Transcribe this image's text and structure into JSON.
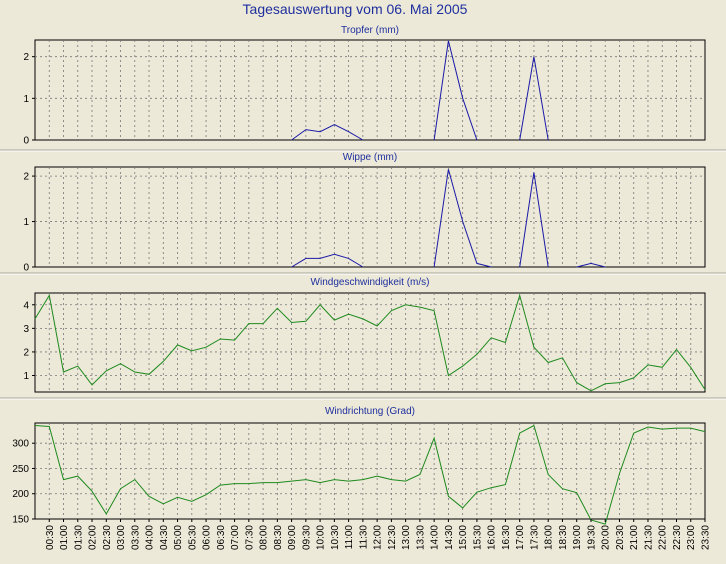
{
  "page": {
    "title": "Tagesauswertung vom 06. Mai 2005",
    "background": "#ece9d8",
    "title_color": "#1f2f9e"
  },
  "chart_data": [
    {
      "type": "line",
      "title": "Tropfer (mm)",
      "color": "#1a1aa8",
      "ylim": [
        0,
        2.4
      ],
      "yticks": [
        0,
        1,
        2
      ],
      "grid": true,
      "x": [
        "00:00",
        "00:30",
        "01:00",
        "01:30",
        "02:00",
        "02:30",
        "03:00",
        "03:30",
        "04:00",
        "04:30",
        "05:00",
        "05:30",
        "06:00",
        "06:30",
        "07:00",
        "07:30",
        "08:00",
        "08:30",
        "09:00",
        "09:30",
        "10:00",
        "10:30",
        "11:00",
        "11:30",
        "12:00",
        "12:30",
        "13:00",
        "13:30",
        "14:00",
        "14:30",
        "15:00",
        "15:30",
        "16:00",
        "16:30",
        "17:00",
        "17:30",
        "18:00",
        "18:30",
        "19:00",
        "19:30",
        "20:00",
        "20:30",
        "21:00",
        "21:30",
        "22:00",
        "22:30",
        "23:00",
        "23:30"
      ],
      "values": [
        null,
        null,
        null,
        null,
        null,
        null,
        null,
        null,
        null,
        null,
        null,
        null,
        null,
        null,
        null,
        null,
        null,
        null,
        0,
        0.25,
        0.2,
        0.37,
        0.2,
        0,
        null,
        null,
        null,
        null,
        0,
        2.38,
        1.0,
        0,
        null,
        null,
        0,
        2.0,
        0,
        null,
        null,
        null,
        null,
        null,
        null,
        null,
        null,
        null,
        null,
        null
      ]
    },
    {
      "type": "line",
      "title": "Wippe (mm)",
      "color": "#1a1aa8",
      "ylim": [
        0,
        2.2
      ],
      "yticks": [
        0,
        1,
        2
      ],
      "grid": true,
      "x": [
        "00:00",
        "00:30",
        "01:00",
        "01:30",
        "02:00",
        "02:30",
        "03:00",
        "03:30",
        "04:00",
        "04:30",
        "05:00",
        "05:30",
        "06:00",
        "06:30",
        "07:00",
        "07:30",
        "08:00",
        "08:30",
        "09:00",
        "09:30",
        "10:00",
        "10:30",
        "11:00",
        "11:30",
        "12:00",
        "12:30",
        "13:00",
        "13:30",
        "14:00",
        "14:30",
        "15:00",
        "15:30",
        "16:00",
        "16:30",
        "17:00",
        "17:30",
        "18:00",
        "18:30",
        "19:00",
        "19:30",
        "20:00",
        "20:30",
        "21:00",
        "21:30",
        "22:00",
        "22:30",
        "23:00",
        "23:30"
      ],
      "values": [
        null,
        null,
        null,
        null,
        null,
        null,
        null,
        null,
        null,
        null,
        null,
        null,
        null,
        null,
        null,
        null,
        null,
        null,
        0,
        0.19,
        0.19,
        0.28,
        0.19,
        0,
        null,
        null,
        null,
        null,
        0,
        2.15,
        1.0,
        0.08,
        0,
        null,
        0,
        2.08,
        0,
        null,
        0,
        0.08,
        0,
        null,
        null,
        null,
        null,
        null,
        null,
        null
      ]
    },
    {
      "type": "line",
      "title": "Windgeschwindigkeit (m/s)",
      "color": "#1e8a1e",
      "ylim": [
        0.3,
        4.5
      ],
      "yticks": [
        1,
        2,
        3,
        4
      ],
      "grid": true,
      "x": [
        "00:00",
        "00:30",
        "01:00",
        "01:30",
        "02:00",
        "02:30",
        "03:00",
        "03:30",
        "04:00",
        "04:30",
        "05:00",
        "05:30",
        "06:00",
        "06:30",
        "07:00",
        "07:30",
        "08:00",
        "08:30",
        "09:00",
        "09:30",
        "10:00",
        "10:30",
        "11:00",
        "11:30",
        "12:00",
        "12:30",
        "13:00",
        "13:30",
        "14:00",
        "14:30",
        "15:00",
        "15:30",
        "16:00",
        "16:30",
        "17:00",
        "17:30",
        "18:00",
        "18:30",
        "19:00",
        "19:30",
        "20:00",
        "20:30",
        "21:00",
        "21:30",
        "22:00",
        "22:30",
        "23:00",
        "23:30"
      ],
      "values": [
        3.4,
        4.4,
        1.15,
        1.4,
        0.6,
        1.2,
        1.5,
        1.15,
        1.05,
        1.6,
        2.3,
        2.05,
        2.2,
        2.55,
        2.5,
        3.2,
        3.2,
        3.85,
        3.25,
        3.3,
        4.0,
        3.35,
        3.6,
        3.4,
        3.1,
        3.75,
        4.0,
        3.9,
        3.75,
        1.0,
        1.4,
        1.9,
        2.6,
        2.4,
        4.4,
        2.2,
        1.55,
        1.75,
        0.7,
        0.35,
        0.65,
        0.7,
        0.9,
        1.45,
        1.35,
        2.1,
        1.35,
        0.4
      ]
    },
    {
      "type": "line",
      "title": "Windrichtung (Grad)",
      "color": "#1e8a1e",
      "ylim": [
        150,
        340
      ],
      "yticks": [
        150,
        200,
        250,
        300
      ],
      "grid": true,
      "x": [
        "00:00",
        "00:30",
        "01:00",
        "01:30",
        "02:00",
        "02:30",
        "03:00",
        "03:30",
        "04:00",
        "04:30",
        "05:00",
        "05:30",
        "06:00",
        "06:30",
        "07:00",
        "07:30",
        "08:00",
        "08:30",
        "09:00",
        "09:30",
        "10:00",
        "10:30",
        "11:00",
        "11:30",
        "12:00",
        "12:30",
        "13:00",
        "13:30",
        "14:00",
        "14:30",
        "15:00",
        "15:30",
        "16:00",
        "16:30",
        "17:00",
        "17:30",
        "18:00",
        "18:30",
        "19:00",
        "19:30",
        "20:00",
        "20:30",
        "21:00",
        "21:30",
        "22:00",
        "22:30",
        "23:00",
        "23:30"
      ],
      "xticks": [
        "00:30",
        "01:00",
        "01:30",
        "02:00",
        "02:30",
        "03:00",
        "03:30",
        "04:00",
        "04:30",
        "05:00",
        "05:30",
        "06:00",
        "06:30",
        "07:00",
        "07:30",
        "08:00",
        "08:30",
        "09:00",
        "09:30",
        "10:00",
        "10:30",
        "11:00",
        "11:30",
        "12:00",
        "12:30",
        "13:00",
        "13:30",
        "14:00",
        "14:30",
        "15:00",
        "15:30",
        "16:00",
        "16:30",
        "17:00",
        "17:30",
        "18:00",
        "18:30",
        "19:00",
        "19:30",
        "20:00",
        "20:30",
        "21:00",
        "21:30",
        "22:00",
        "22:30",
        "23:00",
        "23:30"
      ],
      "values": [
        335,
        333,
        228,
        235,
        205,
        160,
        210,
        228,
        195,
        180,
        193,
        185,
        198,
        217,
        220,
        220,
        222,
        222,
        225,
        228,
        222,
        228,
        225,
        228,
        235,
        228,
        225,
        238,
        310,
        195,
        172,
        203,
        212,
        218,
        320,
        335,
        238,
        210,
        202,
        148,
        140,
        240,
        320,
        332,
        328,
        330,
        330,
        323
      ]
    }
  ]
}
